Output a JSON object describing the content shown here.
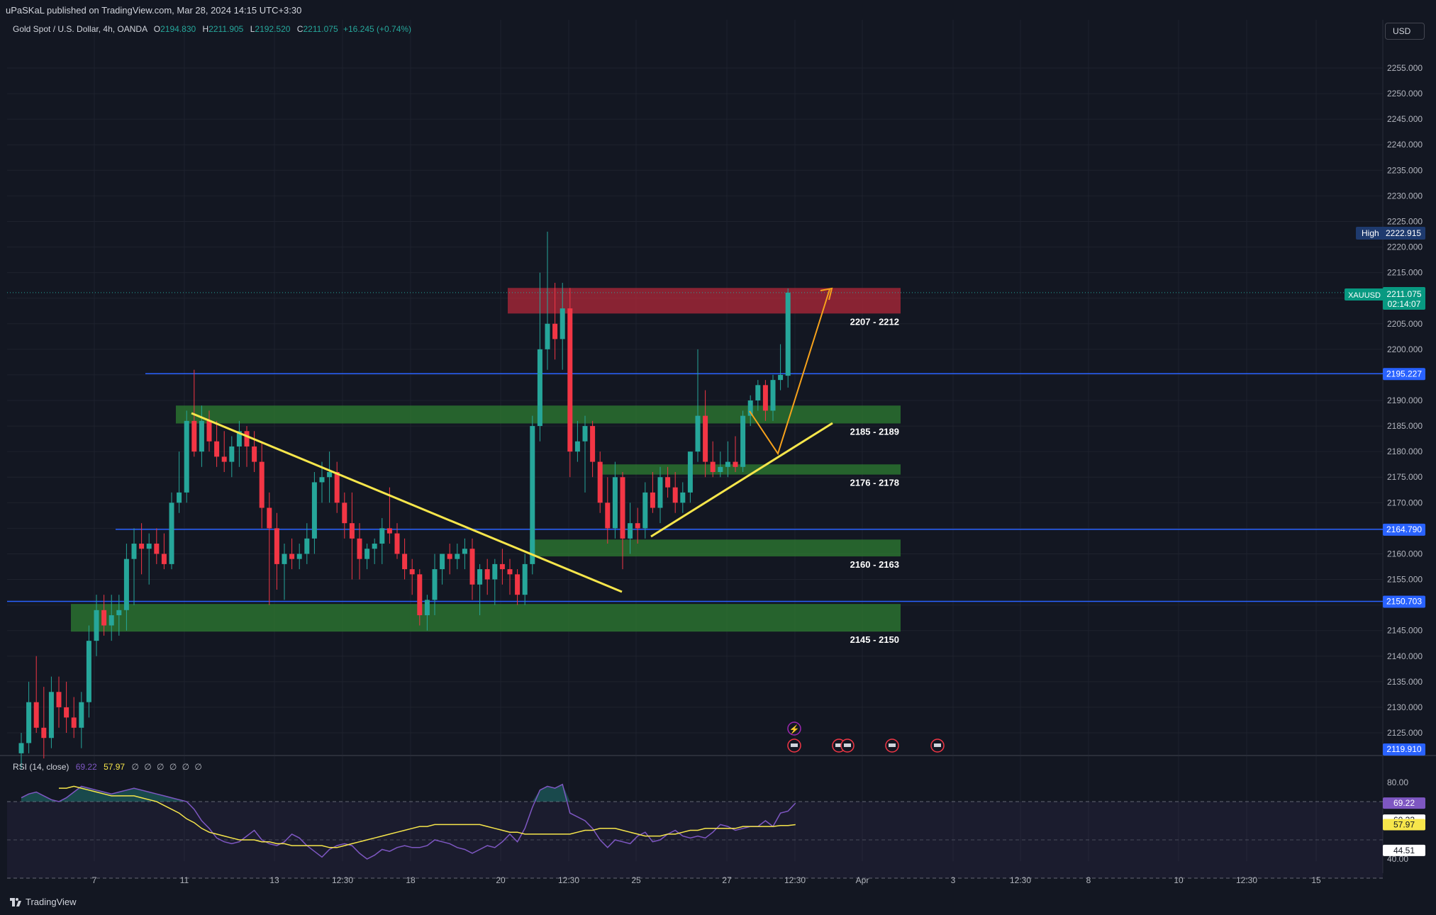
{
  "header": {
    "published_text": "uPaSKaL published on TradingView.com, Mar 28, 2024 14:15 UTC+3:30"
  },
  "legend": {
    "symbol": "Gold Spot / U.S. Dollar, 4h, OANDA",
    "o_label": "O",
    "o_value": "2194.830",
    "h_label": "H",
    "h_value": "2211.905",
    "l_label": "L",
    "l_value": "2192.520",
    "c_label": "C",
    "c_value": "2211.075",
    "change": "+16.245 (+0.74%)"
  },
  "currency_button": "USD",
  "rsi_legend": {
    "name": "RSI (14, close)",
    "value1": "69.22",
    "value2": "57.97",
    "extra": "∅ ∅ ∅ ∅ ∅ ∅"
  },
  "brand": "TradingView",
  "colors": {
    "background": "#131722",
    "up": "#26a69a",
    "down": "#f23645",
    "zone_green": "#2e7d32",
    "zone_red": "#b2283a",
    "blue_line": "#2962ff",
    "trend_yellow": "#f7e64b",
    "arrow_orange": "#f7a21b",
    "rsi": "#7e57c2",
    "rsi_ma": "#f7e64b"
  },
  "chart_data": {
    "type": "candlestick",
    "symbol": "XAUUSD",
    "timeframe": "4h",
    "ylim": [
      2118,
      2260
    ],
    "price_ticks": [
      "2125.000",
      "2130.000",
      "2135.000",
      "2140.000",
      "2145.000",
      "2150.000",
      "2155.000",
      "2160.000",
      "2165.000",
      "2170.000",
      "2175.000",
      "2180.000",
      "2185.000",
      "2190.000",
      "2195.000",
      "2200.000",
      "2205.000",
      "2210.000",
      "2215.000",
      "2220.000",
      "2225.000",
      "2230.000",
      "2235.000",
      "2240.000",
      "2245.000",
      "2250.000",
      "2255.000"
    ],
    "x_ticks": [
      "7",
      "11",
      "13",
      "12:30",
      "18",
      "20",
      "12:30",
      "25",
      "27",
      "12:30",
      "Apr",
      "3",
      "12:30",
      "8",
      "10",
      "12:30",
      "15"
    ],
    "candles": [
      [
        2121,
        2125,
        2118,
        2123
      ],
      [
        2123,
        2135,
        2121,
        2131
      ],
      [
        2131,
        2140,
        2125,
        2126
      ],
      [
        2126,
        2134,
        2120,
        2124
      ],
      [
        2124,
        2136,
        2122,
        2133
      ],
      [
        2133,
        2136,
        2126,
        2130
      ],
      [
        2130,
        2135,
        2125,
        2128
      ],
      [
        2128,
        2132,
        2124,
        2126
      ],
      [
        2126,
        2133,
        2122,
        2131
      ],
      [
        2131,
        2146,
        2128,
        2143
      ],
      [
        2143,
        2152,
        2140,
        2149
      ],
      [
        2149,
        2152,
        2144,
        2146
      ],
      [
        2146,
        2152,
        2143,
        2148
      ],
      [
        2148,
        2152,
        2144,
        2149
      ],
      [
        2149,
        2162,
        2145,
        2159
      ],
      [
        2159,
        2165,
        2150,
        2162
      ],
      [
        2162,
        2166,
        2156,
        2161
      ],
      [
        2161,
        2164,
        2154,
        2162
      ],
      [
        2162,
        2165,
        2158,
        2160
      ],
      [
        2160,
        2164,
        2157,
        2158
      ],
      [
        2158,
        2172,
        2157,
        2170
      ],
      [
        2170,
        2180,
        2168,
        2172
      ],
      [
        2172,
        2188,
        2170,
        2186
      ],
      [
        2186,
        2196,
        2179,
        2180
      ],
      [
        2180,
        2189,
        2177,
        2186
      ],
      [
        2186,
        2188,
        2180,
        2182
      ],
      [
        2182,
        2186,
        2177,
        2179
      ],
      [
        2179,
        2184,
        2176,
        2178
      ],
      [
        2178,
        2183,
        2175,
        2181
      ],
      [
        2181,
        2186,
        2177,
        2184
      ],
      [
        2184,
        2185,
        2177,
        2181
      ],
      [
        2181,
        2184,
        2176,
        2178
      ],
      [
        2178,
        2182,
        2165,
        2169
      ],
      [
        2169,
        2172,
        2150,
        2165
      ],
      [
        2165,
        2168,
        2153,
        2158
      ],
      [
        2158,
        2162,
        2151,
        2160
      ],
      [
        2160,
        2163,
        2157,
        2159
      ],
      [
        2159,
        2162,
        2157,
        2160
      ],
      [
        2160,
        2166,
        2158,
        2163
      ],
      [
        2163,
        2176,
        2160,
        2174
      ],
      [
        2174,
        2178,
        2170,
        2175
      ],
      [
        2175,
        2180,
        2170,
        2176
      ],
      [
        2176,
        2178,
        2168,
        2170
      ],
      [
        2170,
        2172,
        2163,
        2166
      ],
      [
        2166,
        2172,
        2155,
        2163
      ],
      [
        2163,
        2166,
        2155,
        2159
      ],
      [
        2159,
        2162,
        2157,
        2161
      ],
      [
        2161,
        2163,
        2158,
        2162
      ],
      [
        2162,
        2167,
        2158,
        2165
      ],
      [
        2165,
        2173,
        2162,
        2164
      ],
      [
        2164,
        2166,
        2159,
        2160
      ],
      [
        2160,
        2163,
        2155,
        2157
      ],
      [
        2157,
        2159,
        2152,
        2156
      ],
      [
        2156,
        2157,
        2146,
        2148
      ],
      [
        2148,
        2152,
        2145,
        2151
      ],
      [
        2151,
        2160,
        2148,
        2157
      ],
      [
        2157,
        2160,
        2154,
        2160
      ],
      [
        2160,
        2162,
        2156,
        2159
      ],
      [
        2159,
        2162,
        2157,
        2160
      ],
      [
        2160,
        2163,
        2157,
        2161
      ],
      [
        2161,
        2163,
        2151,
        2154
      ],
      [
        2154,
        2158,
        2148,
        2157
      ],
      [
        2157,
        2159,
        2152,
        2155
      ],
      [
        2155,
        2159,
        2150,
        2158
      ],
      [
        2158,
        2161,
        2154,
        2157
      ],
      [
        2157,
        2159,
        2152,
        2156
      ],
      [
        2156,
        2157,
        2150,
        2152
      ],
      [
        2152,
        2160,
        2150,
        2158
      ],
      [
        2158,
        2187,
        2156,
        2185
      ],
      [
        2185,
        2215,
        2182,
        2200
      ],
      [
        2200,
        2223,
        2196,
        2205
      ],
      [
        2205,
        2213,
        2198,
        2202
      ],
      [
        2202,
        2213,
        2196,
        2208
      ],
      [
        2208,
        2212,
        2175,
        2180
      ],
      [
        2180,
        2186,
        2178,
        2182
      ],
      [
        2182,
        2187,
        2172,
        2185
      ],
      [
        2185,
        2186,
        2175,
        2178
      ],
      [
        2178,
        2180,
        2168,
        2170
      ],
      [
        2170,
        2175,
        2162,
        2165
      ],
      [
        2165,
        2178,
        2163,
        2175
      ],
      [
        2175,
        2176,
        2157,
        2163
      ],
      [
        2163,
        2170,
        2160,
        2166
      ],
      [
        2166,
        2169,
        2162,
        2165
      ],
      [
        2165,
        2174,
        2163,
        2172
      ],
      [
        2172,
        2176,
        2168,
        2169
      ],
      [
        2169,
        2177,
        2166,
        2175
      ],
      [
        2175,
        2177,
        2171,
        2173
      ],
      [
        2173,
        2176,
        2168,
        2170
      ],
      [
        2170,
        2174,
        2168,
        2172
      ],
      [
        2172,
        2180,
        2170,
        2180
      ],
      [
        2180,
        2200,
        2178,
        2187
      ],
      [
        2187,
        2192,
        2175,
        2178
      ],
      [
        2178,
        2182,
        2175,
        2176
      ],
      [
        2176,
        2180,
        2175,
        2177
      ],
      [
        2177,
        2182,
        2175,
        2178
      ],
      [
        2178,
        2183,
        2176,
        2177
      ],
      [
        2177,
        2188,
        2176,
        2187
      ],
      [
        2187,
        2191,
        2185,
        2190
      ],
      [
        2190,
        2194,
        2188,
        2193
      ],
      [
        2193,
        2194,
        2186,
        2188
      ],
      [
        2188,
        2195,
        2186,
        2194
      ],
      [
        2194,
        2201,
        2192,
        2195
      ],
      [
        2194.83,
        2211.905,
        2192.52,
        2211.075
      ]
    ],
    "rsi": [
      72,
      74,
      75,
      73,
      71,
      70,
      72,
      75,
      78,
      77,
      76,
      75,
      74,
      75,
      76,
      77,
      76,
      75,
      74,
      73,
      72,
      71,
      70,
      66,
      60,
      56,
      51,
      49,
      48,
      49,
      52,
      55,
      50,
      48,
      47,
      49,
      53,
      51,
      47,
      44,
      41,
      45,
      47,
      48,
      47,
      43,
      40,
      42,
      45,
      44,
      46,
      47,
      46,
      46,
      47,
      50,
      49,
      48,
      46,
      45,
      43,
      45,
      47,
      46,
      49,
      53,
      49,
      56,
      67,
      76,
      78,
      77,
      79,
      64,
      62,
      60,
      56,
      50,
      46,
      50,
      49,
      48,
      52,
      54,
      49,
      50,
      53,
      55,
      52,
      51,
      52,
      51,
      54,
      58,
      57,
      55,
      56,
      57,
      57,
      60,
      57,
      64,
      65,
      69.22
    ],
    "rsi_ma": [
      77,
      77,
      78,
      77,
      76,
      75,
      74,
      73,
      73,
      73,
      73,
      72,
      71,
      70,
      68,
      66,
      64,
      61,
      59,
      56,
      54,
      53,
      52,
      51,
      50,
      50,
      50,
      49,
      49,
      48,
      48,
      47,
      47,
      47,
      47,
      47,
      46,
      46,
      47,
      48,
      49,
      50,
      51,
      52,
      53,
      54,
      55,
      56,
      57,
      57,
      58,
      58,
      58,
      58,
      58,
      58,
      58,
      57,
      56,
      55,
      54,
      54,
      53,
      53,
      53,
      53,
      53,
      53,
      53,
      54,
      55,
      55,
      56,
      56,
      56,
      55,
      54,
      53,
      52,
      52,
      52,
      53,
      53,
      54,
      55,
      55,
      56,
      56,
      56,
      56,
      56,
      57,
      57,
      57,
      57,
      57,
      57.5,
      57.5,
      57.97
    ],
    "rsi_levels": {
      "upper": "80.00",
      "lower": "40.00",
      "band_high": 70,
      "band_low": 30
    },
    "zones": [
      {
        "label": "2207 - 2212",
        "low": 2207,
        "high": 2212,
        "type": "supply"
      },
      {
        "label": "2185 - 2189",
        "low": 2185.5,
        "high": 2189,
        "type": "demand"
      },
      {
        "label": "2176 - 2178",
        "low": 2175.5,
        "high": 2177.5,
        "type": "demand"
      },
      {
        "label": "2160 - 2163",
        "low": 2159.5,
        "high": 2162.8,
        "type": "demand"
      },
      {
        "label": "2145 - 2150",
        "low": 2144.8,
        "high": 2150.2,
        "type": "demand"
      }
    ],
    "levels": [
      {
        "price": 2195.227,
        "label": "2195.227"
      },
      {
        "price": 2164.79,
        "label": "2164.790"
      },
      {
        "price": 2150.703,
        "label": "2150.703"
      }
    ],
    "price_tags": {
      "high_label": "High",
      "high_value": "2222.915",
      "last_symbol": "XAUUSD",
      "last_value": "2211.075",
      "countdown": "02:14:07",
      "low_value": "2119.910",
      "rsi_value": "69.22",
      "rsi_ma_value": "57.97",
      "rsi_tag3": "60.33",
      "rsi_tag4": "44.51"
    }
  }
}
